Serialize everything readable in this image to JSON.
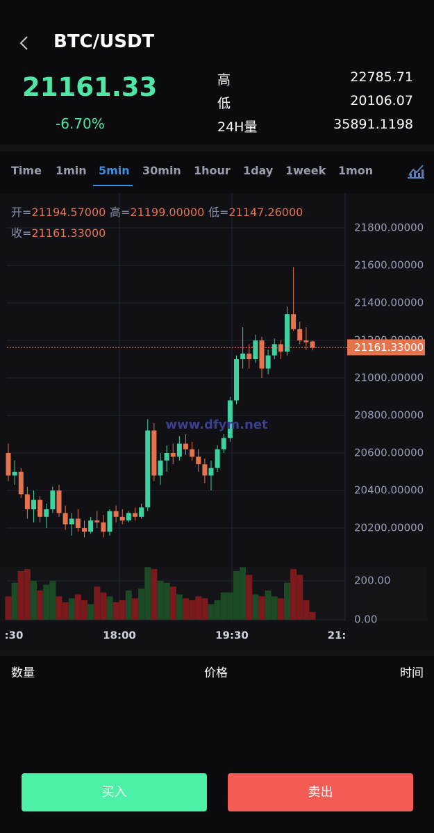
{
  "header": {
    "title": "BTC/USDT",
    "price": "21161.33",
    "change": "-6.70%",
    "stats": [
      {
        "label": "高",
        "value": "22785.71"
      },
      {
        "label": "低",
        "value": "20106.07"
      },
      {
        "label": "24H量",
        "value": "35891.1198"
      }
    ]
  },
  "tabs": [
    "Time",
    "1min",
    "5min",
    "30min",
    "1hour",
    "1day",
    "1week",
    "1mon"
  ],
  "active_tab": 2,
  "chart_data": {
    "type": "candlestick",
    "watermark": "www.dfym.net",
    "info": [
      {
        "label": "开=",
        "value": "21194.57000"
      },
      {
        "label": "高=",
        "value": "21199.00000"
      },
      {
        "label": "低=",
        "value": "21147.26000"
      },
      {
        "label": "收=",
        "value": "21161.33000"
      }
    ],
    "up_color": "#3fd19f",
    "down_color": "#e4734e",
    "grid": true,
    "ylim": [
      20015,
      21985
    ],
    "yticks": [
      {
        "value": 20200,
        "label": "20200.00000"
      },
      {
        "value": 20400,
        "label": "20400.00000"
      },
      {
        "value": 20600,
        "label": "20600.00000"
      },
      {
        "value": 20800,
        "label": "20800.00000"
      },
      {
        "value": 21000,
        "label": "21000.00000"
      },
      {
        "value": 21200,
        "label": "21200.00000"
      },
      {
        "value": 21400,
        "label": "21400.00000"
      },
      {
        "value": 21600,
        "label": "21600.00000"
      },
      {
        "value": 21800,
        "label": "21800.00000"
      }
    ],
    "current_price": {
      "value": 21161.33,
      "label": "21161.33000"
    },
    "time_labels": [
      ":30",
      "18:00",
      "19:30",
      "21:"
    ],
    "candles": [
      {
        "open": 20600,
        "high": 20650,
        "low": 20450,
        "close": 20480
      },
      {
        "open": 20480,
        "high": 20560,
        "low": 20430,
        "close": 20500
      },
      {
        "open": 20500,
        "high": 20520,
        "low": 20360,
        "close": 20380
      },
      {
        "open": 20380,
        "high": 20420,
        "low": 20250,
        "close": 20300
      },
      {
        "open": 20300,
        "high": 20400,
        "low": 20230,
        "close": 20350
      },
      {
        "open": 20350,
        "high": 20370,
        "low": 20230,
        "close": 20260
      },
      {
        "open": 20260,
        "high": 20330,
        "low": 20200,
        "close": 20300
      },
      {
        "open": 20300,
        "high": 20420,
        "low": 20280,
        "close": 20400
      },
      {
        "open": 20400,
        "high": 20430,
        "low": 20260,
        "close": 20280
      },
      {
        "open": 20280,
        "high": 20320,
        "low": 20190,
        "close": 20220
      },
      {
        "open": 20220,
        "high": 20280,
        "low": 20160,
        "close": 20250
      },
      {
        "open": 20250,
        "high": 20300,
        "low": 20180,
        "close": 20200
      },
      {
        "open": 20200,
        "high": 20240,
        "low": 20150,
        "close": 20180
      },
      {
        "open": 20180,
        "high": 20260,
        "low": 20170,
        "close": 20240
      },
      {
        "open": 20240,
        "high": 20290,
        "low": 20200,
        "close": 20230
      },
      {
        "open": 20230,
        "high": 20270,
        "low": 20150,
        "close": 20180
      },
      {
        "open": 20180,
        "high": 20300,
        "low": 20160,
        "close": 20290
      },
      {
        "open": 20290,
        "high": 20320,
        "low": 20230,
        "close": 20260
      },
      {
        "open": 20260,
        "high": 20300,
        "low": 20220,
        "close": 20240
      },
      {
        "open": 20240,
        "high": 20290,
        "low": 20230,
        "close": 20280
      },
      {
        "open": 20280,
        "high": 20310,
        "low": 20240,
        "close": 20260
      },
      {
        "open": 20260,
        "high": 20330,
        "low": 20250,
        "close": 20310
      },
      {
        "open": 20310,
        "high": 20780,
        "low": 20290,
        "close": 20720
      },
      {
        "open": 20720,
        "high": 20760,
        "low": 20450,
        "close": 20480
      },
      {
        "open": 20480,
        "high": 20600,
        "low": 20430,
        "close": 20560
      },
      {
        "open": 20560,
        "high": 20640,
        "low": 20500,
        "close": 20600
      },
      {
        "open": 20600,
        "high": 20650,
        "low": 20540,
        "close": 20580
      },
      {
        "open": 20580,
        "high": 20690,
        "low": 20560,
        "close": 20650
      },
      {
        "open": 20650,
        "high": 20700,
        "low": 20590,
        "close": 20620
      },
      {
        "open": 20620,
        "high": 20660,
        "low": 20560,
        "close": 20580
      },
      {
        "open": 20580,
        "high": 20620,
        "low": 20500,
        "close": 20540
      },
      {
        "open": 20540,
        "high": 20570,
        "low": 20440,
        "close": 20480
      },
      {
        "open": 20480,
        "high": 20560,
        "low": 20400,
        "close": 20520
      },
      {
        "open": 20520,
        "high": 20640,
        "low": 20500,
        "close": 20620
      },
      {
        "open": 20620,
        "high": 20700,
        "low": 20600,
        "close": 20680
      },
      {
        "open": 20680,
        "high": 20900,
        "low": 20660,
        "close": 20880
      },
      {
        "open": 20880,
        "high": 21120,
        "low": 20860,
        "close": 21100
      },
      {
        "open": 21100,
        "high": 21270,
        "low": 21050,
        "close": 21130
      },
      {
        "open": 21130,
        "high": 21180,
        "low": 21050,
        "close": 21100
      },
      {
        "open": 21100,
        "high": 21230,
        "low": 21080,
        "close": 21200
      },
      {
        "open": 21200,
        "high": 21220,
        "low": 21000,
        "close": 21050
      },
      {
        "open": 21050,
        "high": 21150,
        "low": 21020,
        "close": 21120
      },
      {
        "open": 21120,
        "high": 21210,
        "low": 21100,
        "close": 21180
      },
      {
        "open": 21180,
        "high": 21200,
        "low": 21100,
        "close": 21140
      },
      {
        "open": 21140,
        "high": 21380,
        "low": 21120,
        "close": 21340
      },
      {
        "open": 21340,
        "high": 21590,
        "low": 21250,
        "close": 21260
      },
      {
        "open": 21260,
        "high": 21300,
        "low": 21180,
        "close": 21200
      },
      {
        "open": 21200,
        "high": 21270,
        "low": 21150,
        "close": 21190
      },
      {
        "open": 21194.57,
        "high": 21199,
        "low": 21147.26,
        "close": 21161.33
      }
    ],
    "volume": {
      "ylim": [
        0,
        264
      ],
      "yticks": [
        {
          "value": 0,
          "label": "0.00"
        },
        {
          "value": 200,
          "label": "200.00"
        }
      ],
      "values": [
        120,
        190,
        250,
        260,
        200,
        150,
        180,
        200,
        120,
        90,
        110,
        130,
        100,
        80,
        170,
        140,
        120,
        90,
        100,
        150,
        110,
        160,
        270,
        260,
        200,
        190,
        170,
        130,
        110,
        100,
        120,
        110,
        80,
        100,
        140,
        140,
        250,
        270,
        230,
        130,
        120,
        150,
        120,
        110,
        190,
        260,
        230,
        100,
        40
      ]
    }
  },
  "trades_header": [
    "数量",
    "价格",
    "时间"
  ],
  "buttons": [
    "买入",
    "卖出"
  ]
}
